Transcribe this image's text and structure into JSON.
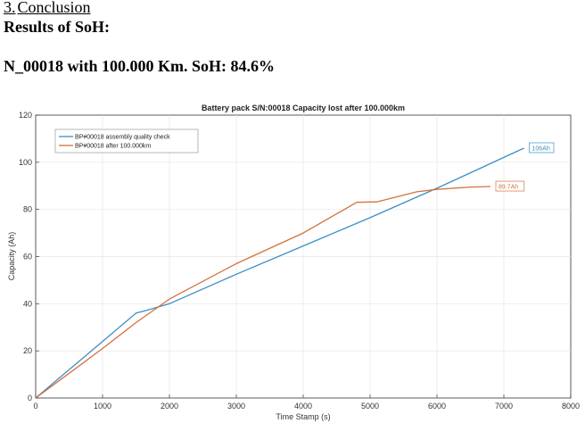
{
  "section": {
    "number": "3.",
    "title": "Conclusion"
  },
  "results_heading": "Results of SoH:",
  "result_line": "N_00018 with 100.000 Km. SoH: 84.6%",
  "colors": {
    "series1": "#3b8fc4",
    "series2": "#d4713c",
    "grid": "#e6e6e6"
  },
  "chart_data": {
    "type": "line",
    "title": "Battery pack S/N:00018 Capacity lost after 100.000km",
    "xlabel": "Time Stamp (s)",
    "ylabel": "Capacity (Ah)",
    "xlim": [
      0,
      8000
    ],
    "ylim": [
      0,
      120
    ],
    "xticks": [
      0,
      1000,
      2000,
      3000,
      4000,
      5000,
      6000,
      7000,
      8000
    ],
    "yticks": [
      0,
      20,
      40,
      60,
      80,
      100,
      120
    ],
    "grid": true,
    "legend_position": "top-left",
    "series": [
      {
        "name": "BP#00018 assembly quality check",
        "x": [
          0,
          500,
          1000,
          1500,
          1700,
          2000,
          3000,
          4000,
          5000,
          6000,
          7300
        ],
        "y": [
          0,
          12,
          24,
          36,
          37.5,
          40,
          52.5,
          64.5,
          76.5,
          89,
          106
        ]
      },
      {
        "name": "BP#00018 after 100.000km",
        "x": [
          0,
          500,
          1000,
          1500,
          2000,
          3000,
          4000,
          4800,
          5100,
          5700,
          6000,
          6500,
          6800
        ],
        "y": [
          0,
          10.5,
          21,
          32,
          42,
          57,
          70,
          83,
          83.2,
          87.5,
          88.5,
          89.5,
          89.7
        ]
      }
    ],
    "annotations": [
      {
        "label": "106Ah",
        "series": 0,
        "x": 7300,
        "y": 106
      },
      {
        "label": "89.7Ah",
        "series": 1,
        "x": 6800,
        "y": 89.7
      }
    ]
  }
}
